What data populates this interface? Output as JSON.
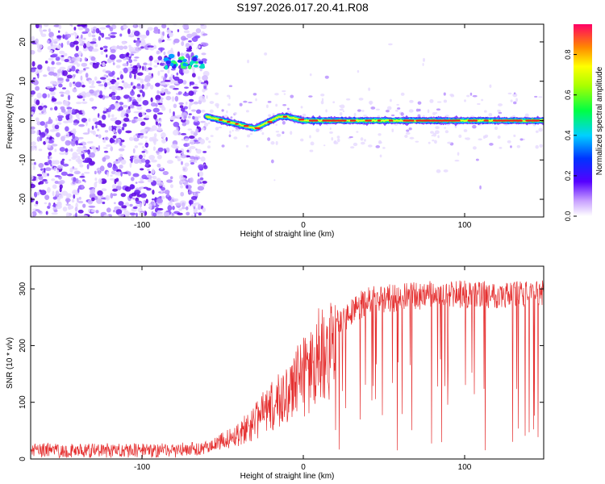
{
  "title": "S197.2026.017.20.41.R08",
  "chart_data": [
    {
      "type": "heatmap",
      "xlabel": "Height of straight line (km)",
      "ylabel": "Frequency (Hz)",
      "xlim": [
        -169,
        149
      ],
      "ylim": [
        -24.5,
        24.5
      ],
      "x_ticks": [
        -100,
        0,
        100
      ],
      "y_ticks": [
        -20,
        -10,
        0,
        10,
        20
      ],
      "colorbar": {
        "label": "Normalized spectral amplitude",
        "range": [
          0,
          0.95
        ],
        "ticks": [
          0.0,
          0.2,
          0.4,
          0.6,
          0.8
        ],
        "tick_labels": [
          "0.0",
          "0.2",
          "0.4",
          "0.6",
          "0.8"
        ]
      },
      "features": {
        "noise_region_x": [
          -169,
          -60
        ],
        "noise_blob_x": [
          -85,
          -62
        ],
        "noise_blob_freq": 15,
        "signal_line": {
          "x": [
            -60,
            -55,
            -50,
            -45,
            -40,
            -35,
            -30,
            -25,
            -20,
            -15,
            -10,
            -5,
            0,
            10,
            20,
            40,
            60,
            80,
            100,
            120,
            140,
            149
          ],
          "freq": [
            1,
            0.5,
            0,
            -0.5,
            -1,
            -1.5,
            -2,
            -1,
            0,
            1,
            1,
            0.5,
            0,
            0,
            0,
            0,
            0,
            0,
            0,
            0,
            0,
            0
          ],
          "peak_amplitude": 0.95
        }
      }
    },
    {
      "type": "line",
      "xlabel": "Height of straight line (km)",
      "ylabel": "SNR (10 * v/v)",
      "xlim": [
        -169,
        149
      ],
      "ylim": [
        0,
        340
      ],
      "x_ticks": [
        -100,
        0,
        100
      ],
      "y_ticks": [
        0,
        100,
        200,
        300
      ],
      "color": "#e53030",
      "trend": {
        "x": [
          -169,
          -80,
          -60,
          -40,
          -20,
          0,
          20,
          40,
          80,
          149
        ],
        "y": [
          15,
          15,
          20,
          50,
          100,
          160,
          240,
          280,
          290,
          290
        ]
      }
    }
  ]
}
